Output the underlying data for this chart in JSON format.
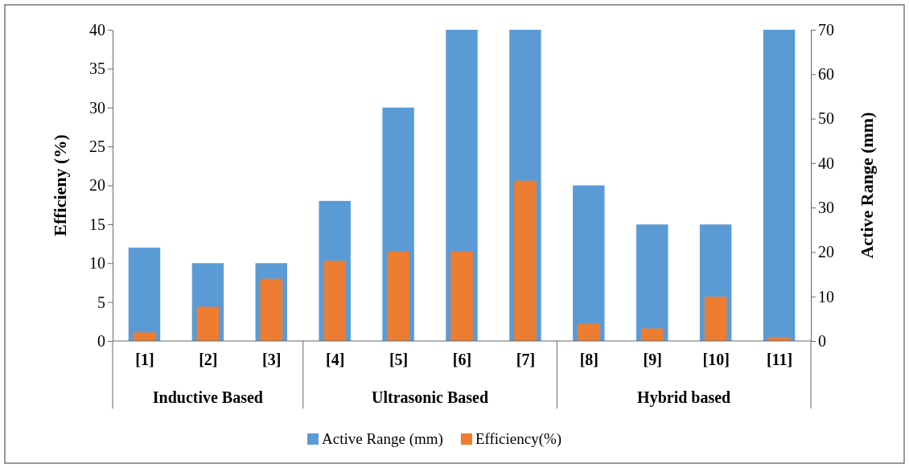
{
  "chart_data": {
    "type": "bar",
    "ylabel": "Efficieny (%)",
    "y2label": "Active Range (mm)",
    "categories": [
      "[1]",
      "[2]",
      "[3]",
      "[4]",
      "[5]",
      "[6]",
      "[7]",
      "[8]",
      "[9]",
      "[10]",
      "[11]"
    ],
    "series": [
      {
        "name": "Active Range (mm)",
        "color": "#5b9bd5",
        "axis": "y2",
        "values": [
          21,
          17.5,
          17.5,
          31.5,
          52.5,
          70,
          70,
          35,
          26.2,
          26.2,
          70
        ]
      },
      {
        "name": "Efficiency(%)",
        "color": "#ed7d31",
        "axis": "y",
        "values": [
          1.1,
          4.4,
          8.0,
          10.3,
          11.5,
          11.5,
          20.6,
          2.2,
          1.6,
          5.7,
          0.5
        ]
      }
    ],
    "ylim": [
      0,
      40
    ],
    "yticks": [
      0,
      5,
      10,
      15,
      20,
      25,
      30,
      35,
      40
    ],
    "y2lim": [
      0,
      70
    ],
    "y2ticks": [
      0,
      10,
      20,
      30,
      40,
      50,
      60,
      70
    ],
    "annotations": [
      "Inductive Based",
      "Ultrasonic Based",
      "Hybrid based"
    ],
    "legend": "bottom",
    "grid": false
  }
}
